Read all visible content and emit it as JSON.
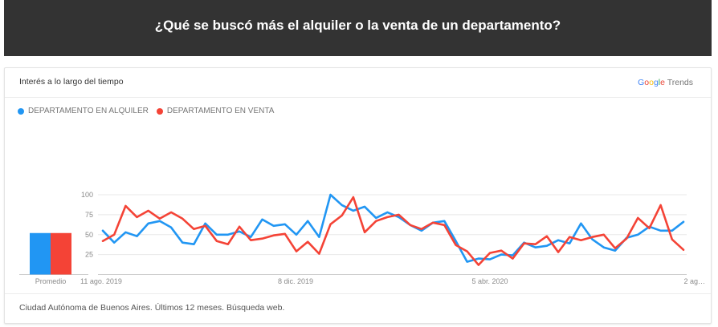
{
  "page_title": "¿Qué se buscó más el alquiler o la venta de un departamento?",
  "card": {
    "title": "Interés a lo largo del tiempo",
    "logo": {
      "g1": "G",
      "g2": "o",
      "g3": "o",
      "g4": "g",
      "g5": "l",
      "g6": "e",
      "trends": "Trends"
    },
    "footer": "Ciudad Autónoma de Buenos Aires. Últimos 12 meses. Búsqueda web."
  },
  "colors": {
    "alquiler": "#2196f3",
    "venta": "#f44336",
    "grid": "#e8e8e8"
  },
  "chart_data": {
    "type": "line",
    "title": "",
    "ylim": [
      0,
      100
    ],
    "y_ticks": [
      25,
      50,
      75,
      100
    ],
    "x_tick_labels": [
      "11 ago. 2019",
      "8 dic. 2019",
      "5 abr. 2020",
      "2 ag…"
    ],
    "grid": true,
    "legend_position": "top-left",
    "average_label": "Promedio",
    "averages": [
      {
        "name": "DEPARTAMENTO EN ALQUILER",
        "value": 52
      },
      {
        "name": "DEPARTAMENTO EN VENTA",
        "value": 52
      }
    ],
    "series": [
      {
        "name": "DEPARTAMENTO EN ALQUILER",
        "values": [
          55,
          40,
          53,
          48,
          64,
          67,
          59,
          40,
          38,
          64,
          50,
          50,
          54,
          47,
          69,
          61,
          63,
          50,
          67,
          47,
          100,
          87,
          80,
          85,
          71,
          78,
          72,
          62,
          55,
          65,
          67,
          42,
          16,
          20,
          19,
          25,
          24,
          40,
          34,
          36,
          43,
          39,
          64,
          44,
          34,
          30,
          46,
          50,
          60,
          55,
          55,
          66
        ]
      },
      {
        "name": "DEPARTAMENTO EN VENTA",
        "values": [
          42,
          50,
          86,
          72,
          80,
          70,
          78,
          70,
          57,
          61,
          42,
          38,
          60,
          43,
          45,
          49,
          51,
          29,
          41,
          26,
          63,
          74,
          97,
          53,
          67,
          72,
          75,
          62,
          57,
          65,
          62,
          37,
          29,
          12,
          27,
          30,
          20,
          39,
          38,
          48,
          28,
          47,
          43,
          47,
          50,
          33,
          45,
          71,
          58,
          87,
          44,
          31
        ]
      }
    ]
  }
}
